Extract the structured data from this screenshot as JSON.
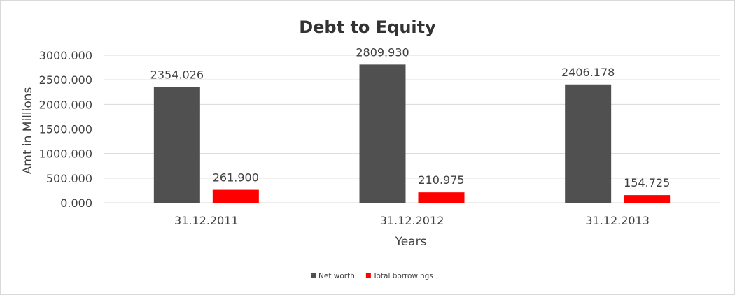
{
  "chart_data": {
    "type": "bar",
    "title": "Debt to Equity",
    "xlabel": "Years",
    "ylabel": "Amt in Millions",
    "categories": [
      "31.12.2011",
      "31.12.2012",
      "31.12.2013"
    ],
    "series": [
      {
        "name": "Net worth",
        "color": "#505050",
        "values": [
          2354.026,
          2809.93,
          2406.178
        ],
        "labels": [
          "2354.026",
          "2809.930",
          "2406.178"
        ]
      },
      {
        "name": "Total borrowings",
        "color": "#ff0000",
        "values": [
          261.9,
          210.975,
          154.725
        ],
        "labels": [
          "261.900",
          "210.975",
          "154.725"
        ]
      }
    ],
    "ylim": [
      0,
      3000
    ],
    "yticks": [
      "0.000",
      "500.000",
      "1000.000",
      "1500.000",
      "2000.000",
      "2500.000",
      "3000.000"
    ],
    "grid": true,
    "legend": "bottom"
  }
}
